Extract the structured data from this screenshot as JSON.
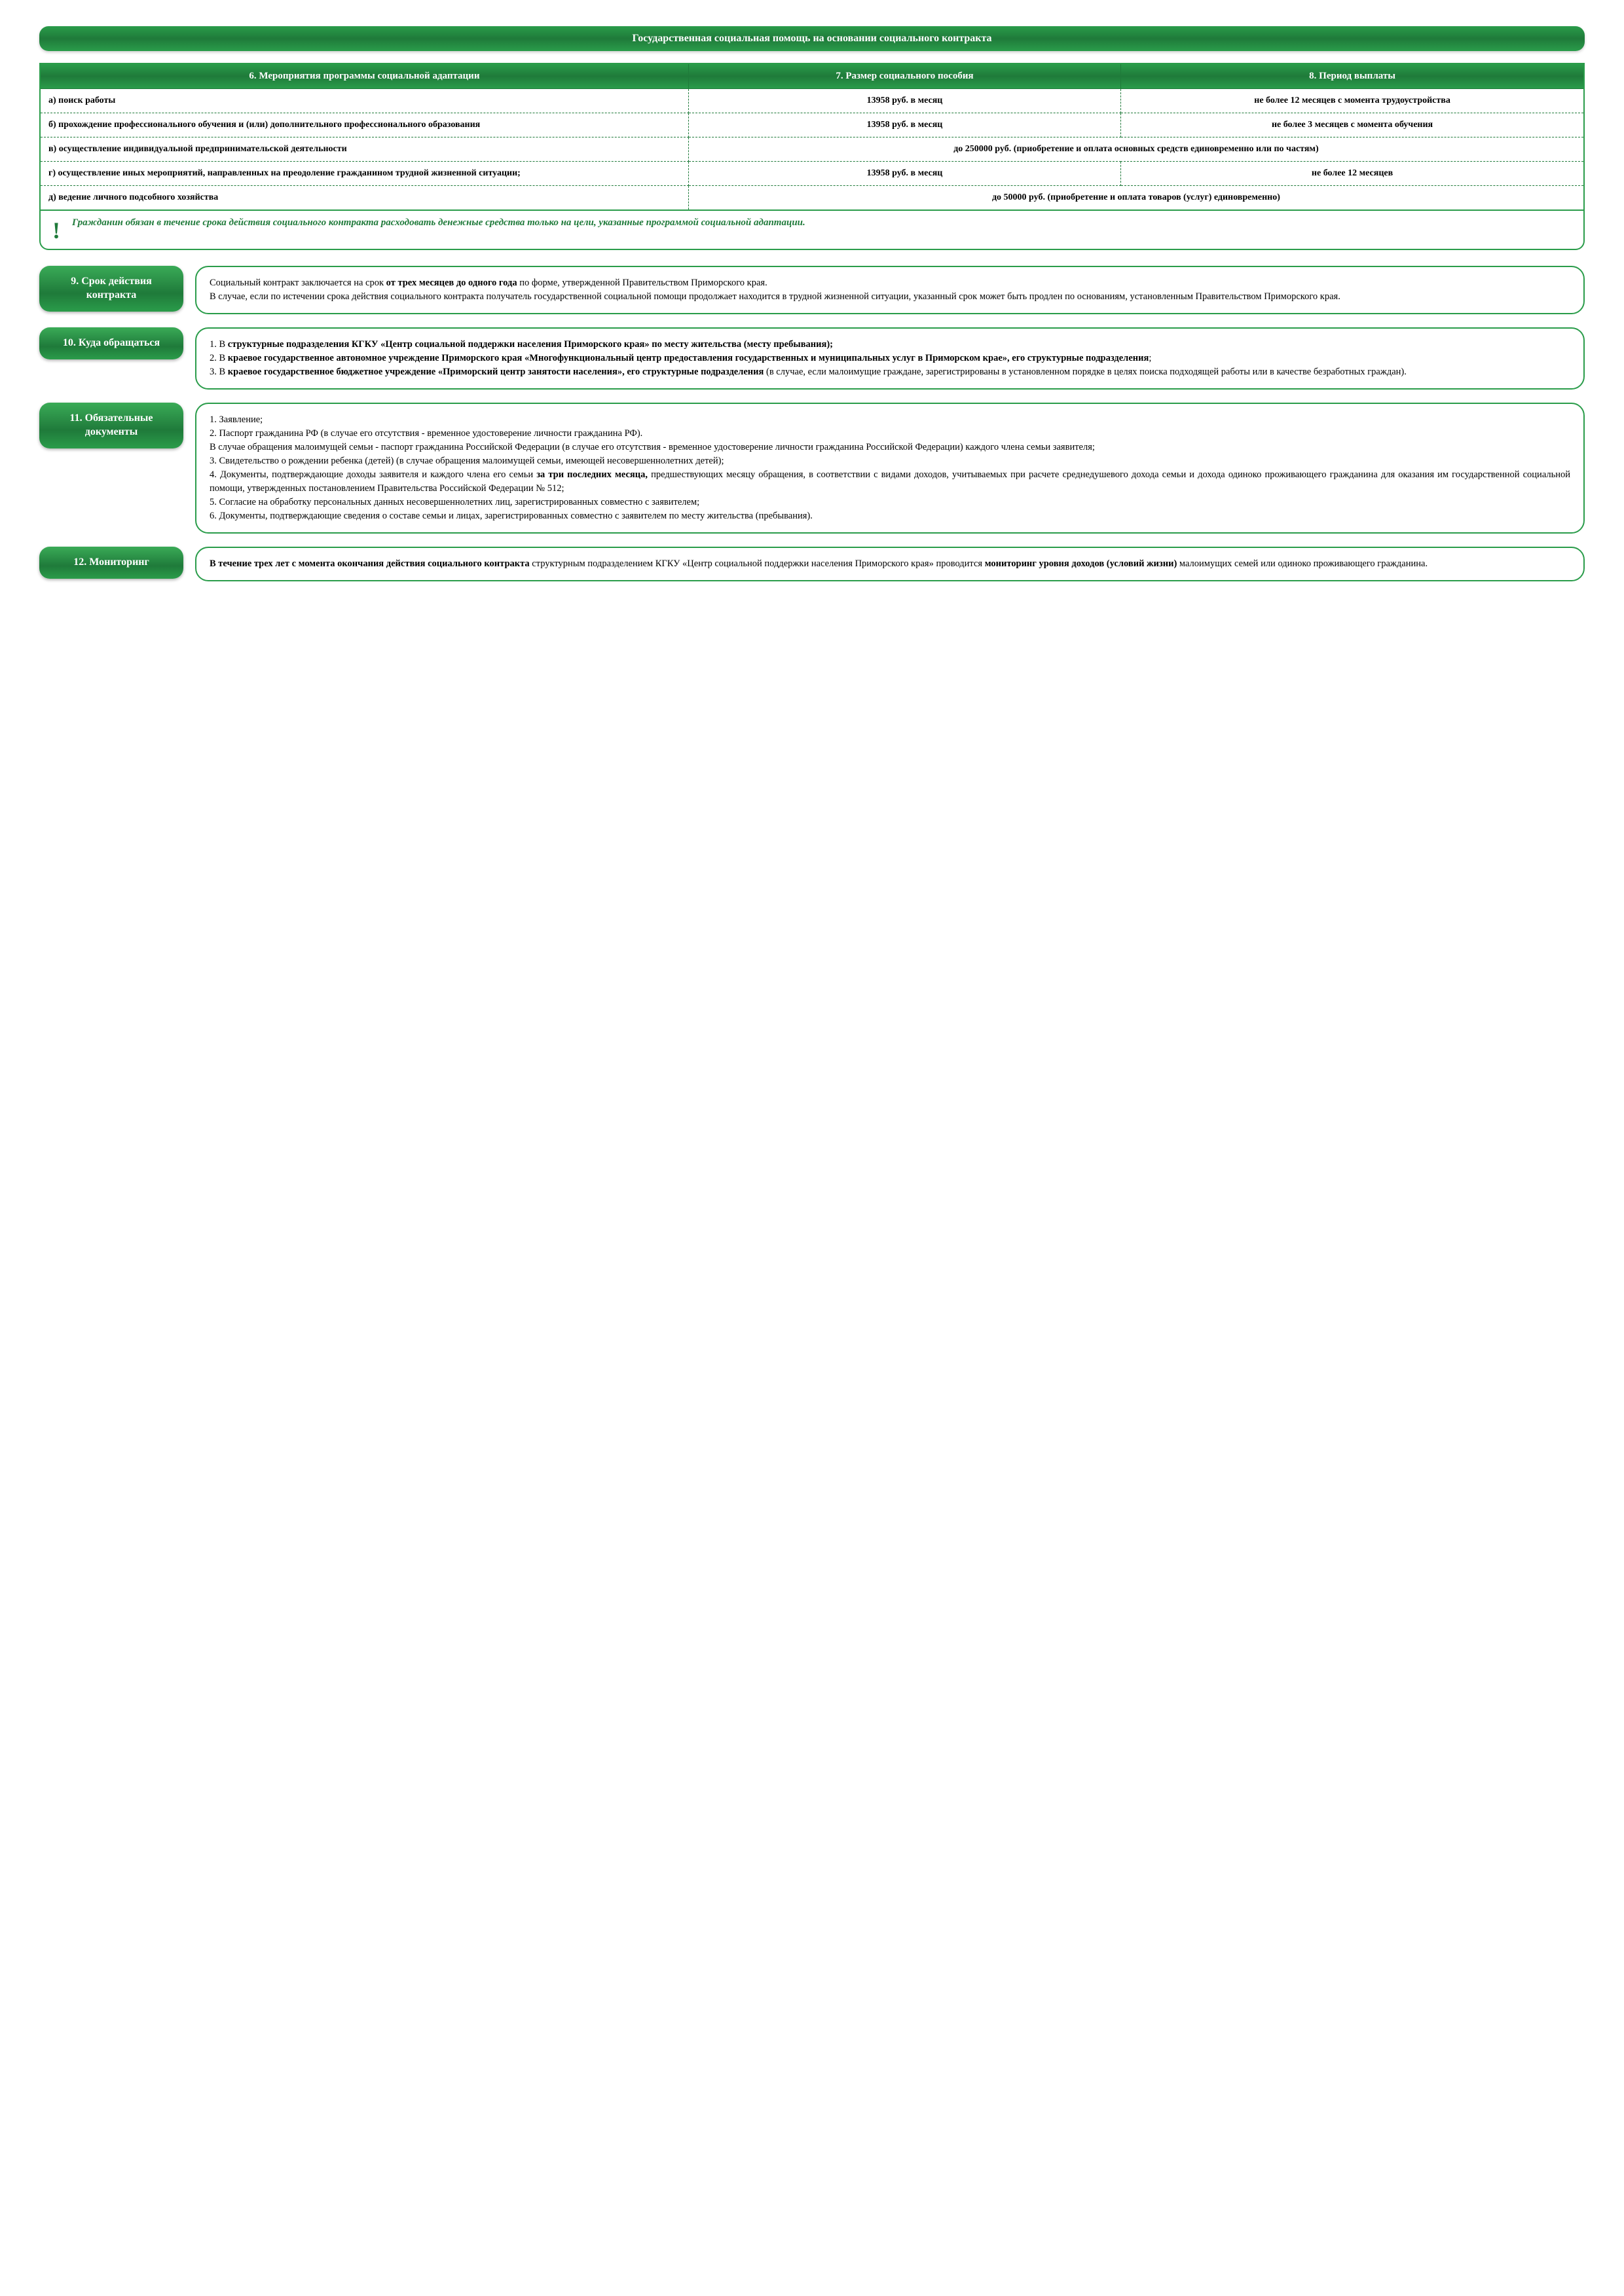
{
  "colors": {
    "green_primary": "#2a9c4a",
    "green_dark": "#1f7a3a",
    "text": "#000000",
    "background": "#ffffff"
  },
  "page_title": "Государственная социальная помощь на основании социального контракта",
  "table": {
    "headers": {
      "col1": "6.  Мероприятия программы социальной адаптации",
      "col2": "7. Размер социального пособия",
      "col3": "8. Период выплаты"
    },
    "rows": [
      {
        "activity": "а) поиск работы",
        "amount": "13958 руб. в месяц",
        "period": "не более 12 месяцев с момента трудоустройства"
      },
      {
        "activity": "б) прохождение профессионального обучения и (или) дополнительного профессионального образования",
        "amount": "13958 руб. в месяц",
        "period": "не более 3 месяцев с момента обучения"
      },
      {
        "activity": "в) осуществление индивидуальной предпринимательской деятельности",
        "merged": "до 250000 руб. (приобретение и оплата основных средств единовременно или по частям)"
      },
      {
        "activity": "г) осуществление иных мероприятий, направленных на преодоление гражданином трудной жизненной ситуации;",
        "amount": "13958 руб. в месяц",
        "period": "не более 12 месяцев"
      },
      {
        "activity": "д) ведение личного подсобного хозяйства",
        "merged": "до 50000 руб. (приобретение и оплата товаров (услуг) единовременно)"
      }
    ]
  },
  "note": "Гражданин обязан в течение срока действия социального контракта расходовать денежные средства только на цели, указанные программой социальной адаптации.",
  "sections": {
    "s9": {
      "title": "9. Срок действия контракта",
      "body_html": "Социальный контракт заключается на срок <b>от трех месяцев до одного года</b> по форме, утвержденной Правительством Приморского края.<br>В случае, если по истечении срока действия социального контракта получатель государственной социальной помощи продолжает находится в трудной жизненной ситуации, указанный срок может быть продлен по основаниям, установленным Правительством Приморского края."
    },
    "s10": {
      "title": "10. Куда обращаться",
      "body_html": "1. В <b>структурные подразделения КГКУ «Центр социальной поддержки населения Приморского края» по месту жительства (месту пребывания);</b><br>2. В <b>краевое государственное автономное учреждение Приморского края «Многофункциональный центр предоставления государственных и муниципальных услуг в Приморском крае», его структурные подразделения</b>;<br>3. В <b>краевое государственное бюджетное учреждение «Приморский центр занятости населения», его структурные подразделения</b> (в случае, если малоимущие граждане, зарегистрированы в установленном порядке в целях поиска подходящей работы или в качестве безработных граждан)."
    },
    "s11": {
      "title": "11. Обязательные документы",
      "body_html": "1. Заявление;<br>2. Паспорт гражданина РФ (в случае его отсутствия - временное удостоверение личности гражданина РФ).<br>В случае обращения малоимущей семьи - паспорт гражданина Российской Федерации (в случае его отсутствия - временное удостоверение личности гражданина Российской Федерации) каждого члена семьи заявителя;<br>3. Свидетельство о рождении ребенка (детей) (в случае обращения малоимущей семьи, имеющей несовершеннолетних детей);<br>4. Документы, подтверждающие доходы заявителя и каждого члена его семьи <b>за три последних месяца,</b> предшествующих месяцу обращения, в соответствии с видами доходов, учитываемых при расчете среднедушевого дохода семьи и дохода одиноко проживающего гражданина для оказания им государственной социальной помощи, утвержденных постановлением Правительства Российской Федерации № 512;<br>5. Согласие на обработку персональных данных несовершеннолетних лиц, зарегистрированных совместно с заявителем;<br>6. Документы, подтверждающие сведения о составе семьи и лицах, зарегистрированных совместно с заявителем по месту жительства (пребывания)."
    },
    "s12": {
      "title": "12. Мониторинг",
      "body_html": "<b>В течение трех лет с момента окончания действия социального контракта</b> структурным подразделением КГКУ «Центр социальной поддержки населения Приморского края» проводится <b>мониторинг уровня доходов (условий жизни)</b> малоимущих семей или одиноко проживающего гражданина."
    }
  }
}
